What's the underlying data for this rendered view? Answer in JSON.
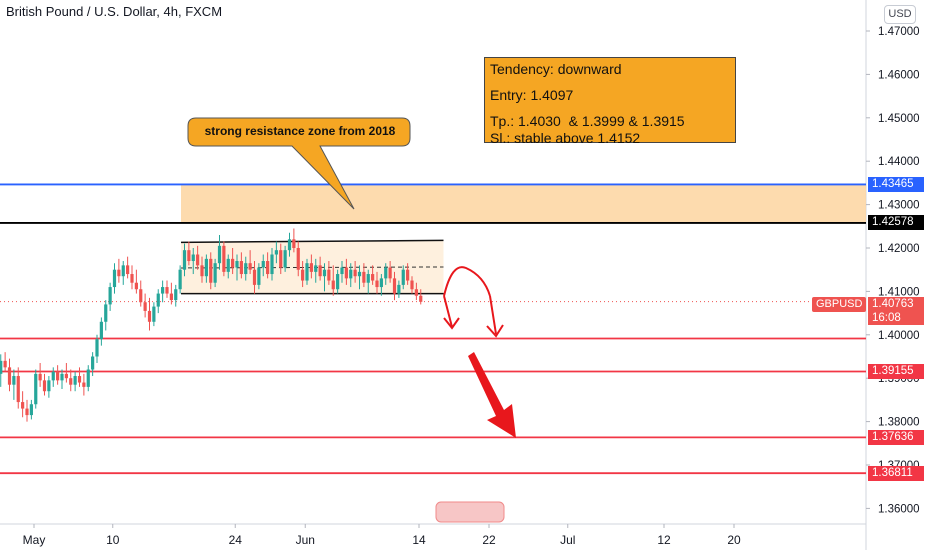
{
  "header": {
    "title": "British Pound / U.S. Dollar, 4h, FXCM",
    "unit_button": "USD"
  },
  "info_box": {
    "tendency": "Tendency: downward",
    "entry": "Entry: 1.4097",
    "tp": "Tp.: 1.4030  & 1.3999 & 1.3915",
    "sl": "Sl.: stable above 1.4152"
  },
  "callout": {
    "text": "strong resistance zone from 2018"
  },
  "price_tag": {
    "symbol": "GBPUSD",
    "price": "1.40763",
    "countdown": "16:08"
  },
  "chart_data": {
    "type": "candlestick",
    "symbol": "GBPUSD",
    "interval": "4h",
    "y_axis": {
      "ylim": [
        1.3555,
        1.4775
      ],
      "ticks": [
        1.47,
        1.46,
        1.45,
        1.44,
        1.43,
        1.42,
        1.41,
        1.4,
        1.39,
        1.38,
        1.37,
        1.36
      ],
      "tick_labels": [
        "1.47000",
        "1.46000",
        "1.45000",
        "1.44000",
        "1.43000",
        "1.42000",
        "1.41000",
        "1.40000",
        "1.39000",
        "1.38000",
        "1.37000",
        "1.36000"
      ]
    },
    "x_axis": {
      "ticks": [
        {
          "label": "May",
          "day": 1
        },
        {
          "label": "10",
          "day": 10
        },
        {
          "label": "24",
          "day": 24
        },
        {
          "label": "Jun",
          "day": 32
        },
        {
          "label": "14",
          "day": 45
        },
        {
          "label": "22",
          "day": 53
        },
        {
          "label": "Jul",
          "day": 62
        },
        {
          "label": "12",
          "day": 73
        },
        {
          "label": "20",
          "day": 81
        }
      ]
    },
    "horizontal_levels": [
      {
        "value": 1.43465,
        "label": "1.43465",
        "color": "#2962ff"
      },
      {
        "value": 1.42578,
        "label": "1.42578",
        "color": "#000000"
      },
      {
        "value": 1.39915,
        "label": "",
        "color": "#f23645"
      },
      {
        "value": 1.39155,
        "label": "1.39155",
        "color": "#f23645"
      },
      {
        "value": 1.37636,
        "label": "1.37636",
        "color": "#f23645"
      },
      {
        "value": 1.36811,
        "label": "1.36811",
        "color": "#f23645"
      }
    ],
    "resistance_zone": {
      "from": 1.42578,
      "to": 1.43465,
      "start_day": 17.8,
      "color": "#fdd5a0"
    },
    "channel": {
      "start_day": 17.8,
      "end_day": 47.8,
      "top": 1.4213,
      "bottom": 1.4095,
      "mid": 1.4154
    },
    "current_price": 1.40763,
    "candles": [
      {
        "d": -3.8,
        "o": 1.3945,
        "h": 1.397,
        "l": 1.3905,
        "c": 1.393
      },
      {
        "d": -3.3,
        "o": 1.393,
        "h": 1.395,
        "l": 1.389,
        "c": 1.391
      },
      {
        "d": -2.8,
        "o": 1.391,
        "h": 1.3955,
        "l": 1.388,
        "c": 1.394
      },
      {
        "d": -2.3,
        "o": 1.394,
        "h": 1.396,
        "l": 1.3915,
        "c": 1.3925
      },
      {
        "d": -1.8,
        "o": 1.3925,
        "h": 1.3945,
        "l": 1.387,
        "c": 1.3885
      },
      {
        "d": -1.3,
        "o": 1.3885,
        "h": 1.392,
        "l": 1.385,
        "c": 1.3905
      },
      {
        "d": -0.8,
        "o": 1.3905,
        "h": 1.3925,
        "l": 1.383,
        "c": 1.3845
      },
      {
        "d": -0.3,
        "o": 1.3845,
        "h": 1.387,
        "l": 1.381,
        "c": 1.383
      },
      {
        "d": 0.2,
        "o": 1.383,
        "h": 1.385,
        "l": 1.38,
        "c": 1.3815
      },
      {
        "d": 0.7,
        "o": 1.3815,
        "h": 1.385,
        "l": 1.3805,
        "c": 1.384
      },
      {
        "d": 1.2,
        "o": 1.384,
        "h": 1.392,
        "l": 1.383,
        "c": 1.391
      },
      {
        "d": 1.7,
        "o": 1.391,
        "h": 1.3935,
        "l": 1.388,
        "c": 1.3895
      },
      {
        "d": 2.2,
        "o": 1.3895,
        "h": 1.391,
        "l": 1.386,
        "c": 1.387
      },
      {
        "d": 2.7,
        "o": 1.387,
        "h": 1.3905,
        "l": 1.3855,
        "c": 1.3895
      },
      {
        "d": 3.2,
        "o": 1.3895,
        "h": 1.3925,
        "l": 1.388,
        "c": 1.3915
      },
      {
        "d": 3.7,
        "o": 1.3915,
        "h": 1.393,
        "l": 1.3885,
        "c": 1.3895
      },
      {
        "d": 4.2,
        "o": 1.3895,
        "h": 1.392,
        "l": 1.3875,
        "c": 1.391
      },
      {
        "d": 4.7,
        "o": 1.391,
        "h": 1.3935,
        "l": 1.389,
        "c": 1.39
      },
      {
        "d": 5.2,
        "o": 1.39,
        "h": 1.392,
        "l": 1.387,
        "c": 1.3885
      },
      {
        "d": 5.7,
        "o": 1.3885,
        "h": 1.3915,
        "l": 1.387,
        "c": 1.3905
      },
      {
        "d": 6.2,
        "o": 1.3905,
        "h": 1.3925,
        "l": 1.388,
        "c": 1.389
      },
      {
        "d": 6.7,
        "o": 1.389,
        "h": 1.391,
        "l": 1.386,
        "c": 1.388
      },
      {
        "d": 7.2,
        "o": 1.388,
        "h": 1.393,
        "l": 1.387,
        "c": 1.392
      },
      {
        "d": 7.7,
        "o": 1.392,
        "h": 1.396,
        "l": 1.3905,
        "c": 1.395
      },
      {
        "d": 8.2,
        "o": 1.395,
        "h": 1.4,
        "l": 1.3935,
        "c": 1.399
      },
      {
        "d": 8.7,
        "o": 1.399,
        "h": 1.404,
        "l": 1.3975,
        "c": 1.403
      },
      {
        "d": 9.2,
        "o": 1.403,
        "h": 1.408,
        "l": 1.401,
        "c": 1.407
      },
      {
        "d": 9.7,
        "o": 1.407,
        "h": 1.412,
        "l": 1.4055,
        "c": 1.411
      },
      {
        "d": 10.2,
        "o": 1.411,
        "h": 1.4165,
        "l": 1.4095,
        "c": 1.415
      },
      {
        "d": 10.7,
        "o": 1.415,
        "h": 1.4175,
        "l": 1.412,
        "c": 1.4135
      },
      {
        "d": 11.2,
        "o": 1.4135,
        "h": 1.417,
        "l": 1.4115,
        "c": 1.416
      },
      {
        "d": 11.7,
        "o": 1.416,
        "h": 1.418,
        "l": 1.413,
        "c": 1.414
      },
      {
        "d": 12.2,
        "o": 1.414,
        "h": 1.416,
        "l": 1.4105,
        "c": 1.412
      },
      {
        "d": 12.7,
        "o": 1.412,
        "h": 1.415,
        "l": 1.4095,
        "c": 1.4105
      },
      {
        "d": 13.2,
        "o": 1.4105,
        "h": 1.4125,
        "l": 1.4065,
        "c": 1.4075
      },
      {
        "d": 13.7,
        "o": 1.4075,
        "h": 1.4095,
        "l": 1.404,
        "c": 1.4055
      },
      {
        "d": 14.2,
        "o": 1.4055,
        "h": 1.4085,
        "l": 1.401,
        "c": 1.403
      },
      {
        "d": 14.7,
        "o": 1.403,
        "h": 1.4075,
        "l": 1.402,
        "c": 1.4065
      },
      {
        "d": 15.2,
        "o": 1.4065,
        "h": 1.4105,
        "l": 1.405,
        "c": 1.4095
      },
      {
        "d": 15.7,
        "o": 1.4095,
        "h": 1.4125,
        "l": 1.4075,
        "c": 1.411
      },
      {
        "d": 16.2,
        "o": 1.411,
        "h": 1.4125,
        "l": 1.4085,
        "c": 1.4095
      },
      {
        "d": 16.7,
        "o": 1.4095,
        "h": 1.412,
        "l": 1.407,
        "c": 1.408
      },
      {
        "d": 17.2,
        "o": 1.408,
        "h": 1.4115,
        "l": 1.4065,
        "c": 1.4105
      },
      {
        "d": 17.7,
        "o": 1.4105,
        "h": 1.416,
        "l": 1.4095,
        "c": 1.415
      },
      {
        "d": 18.2,
        "o": 1.415,
        "h": 1.421,
        "l": 1.4135,
        "c": 1.4195
      },
      {
        "d": 18.7,
        "o": 1.4195,
        "h": 1.4215,
        "l": 1.416,
        "c": 1.417
      },
      {
        "d": 19.2,
        "o": 1.417,
        "h": 1.42,
        "l": 1.414,
        "c": 1.4185
      },
      {
        "d": 19.7,
        "o": 1.4185,
        "h": 1.4205,
        "l": 1.415,
        "c": 1.416
      },
      {
        "d": 20.2,
        "o": 1.416,
        "h": 1.418,
        "l": 1.412,
        "c": 1.4135
      },
      {
        "d": 20.7,
        "o": 1.4135,
        "h": 1.4185,
        "l": 1.412,
        "c": 1.4175
      },
      {
        "d": 21.2,
        "o": 1.4175,
        "h": 1.419,
        "l": 1.4105,
        "c": 1.412
      },
      {
        "d": 21.7,
        "o": 1.412,
        "h": 1.4175,
        "l": 1.411,
        "c": 1.4165
      },
      {
        "d": 22.2,
        "o": 1.4165,
        "h": 1.423,
        "l": 1.415,
        "c": 1.4205
      },
      {
        "d": 22.7,
        "o": 1.4205,
        "h": 1.4215,
        "l": 1.4135,
        "c": 1.4145
      },
      {
        "d": 23.2,
        "o": 1.4145,
        "h": 1.4185,
        "l": 1.413,
        "c": 1.4175
      },
      {
        "d": 23.7,
        "o": 1.4175,
        "h": 1.42,
        "l": 1.414,
        "c": 1.4155
      },
      {
        "d": 24.2,
        "o": 1.4155,
        "h": 1.4185,
        "l": 1.4125,
        "c": 1.417
      },
      {
        "d": 24.7,
        "o": 1.417,
        "h": 1.419,
        "l": 1.413,
        "c": 1.414
      },
      {
        "d": 25.2,
        "o": 1.414,
        "h": 1.418,
        "l": 1.4125,
        "c": 1.4165
      },
      {
        "d": 25.7,
        "o": 1.4165,
        "h": 1.4195,
        "l": 1.414,
        "c": 1.415
      },
      {
        "d": 26.2,
        "o": 1.415,
        "h": 1.417,
        "l": 1.4095,
        "c": 1.4115
      },
      {
        "d": 26.7,
        "o": 1.4115,
        "h": 1.4165,
        "l": 1.4105,
        "c": 1.4155
      },
      {
        "d": 27.2,
        "o": 1.4155,
        "h": 1.4185,
        "l": 1.4135,
        "c": 1.417
      },
      {
        "d": 27.7,
        "o": 1.417,
        "h": 1.419,
        "l": 1.413,
        "c": 1.414
      },
      {
        "d": 28.2,
        "o": 1.414,
        "h": 1.42,
        "l": 1.4125,
        "c": 1.4185
      },
      {
        "d": 28.7,
        "o": 1.4185,
        "h": 1.4215,
        "l": 1.4165,
        "c": 1.4195
      },
      {
        "d": 29.2,
        "o": 1.4195,
        "h": 1.421,
        "l": 1.414,
        "c": 1.4155
      },
      {
        "d": 29.7,
        "o": 1.4155,
        "h": 1.4205,
        "l": 1.4145,
        "c": 1.4195
      },
      {
        "d": 30.2,
        "o": 1.4195,
        "h": 1.4235,
        "l": 1.418,
        "c": 1.422
      },
      {
        "d": 30.7,
        "o": 1.422,
        "h": 1.4245,
        "l": 1.419,
        "c": 1.42
      },
      {
        "d": 31.2,
        "o": 1.42,
        "h": 1.4215,
        "l": 1.4135,
        "c": 1.415
      },
      {
        "d": 31.7,
        "o": 1.415,
        "h": 1.417,
        "l": 1.411,
        "c": 1.4125
      },
      {
        "d": 32.2,
        "o": 1.4125,
        "h": 1.4175,
        "l": 1.4115,
        "c": 1.4165
      },
      {
        "d": 32.7,
        "o": 1.4165,
        "h": 1.4185,
        "l": 1.413,
        "c": 1.4145
      },
      {
        "d": 33.2,
        "o": 1.4145,
        "h": 1.4175,
        "l": 1.412,
        "c": 1.416
      },
      {
        "d": 33.7,
        "o": 1.416,
        "h": 1.418,
        "l": 1.4125,
        "c": 1.4135
      },
      {
        "d": 34.2,
        "o": 1.4135,
        "h": 1.4165,
        "l": 1.41,
        "c": 1.415
      },
      {
        "d": 34.7,
        "o": 1.415,
        "h": 1.417,
        "l": 1.4115,
        "c": 1.4125
      },
      {
        "d": 35.2,
        "o": 1.4125,
        "h": 1.416,
        "l": 1.409,
        "c": 1.4105
      },
      {
        "d": 35.7,
        "o": 1.4105,
        "h": 1.415,
        "l": 1.4095,
        "c": 1.414
      },
      {
        "d": 36.2,
        "o": 1.414,
        "h": 1.417,
        "l": 1.412,
        "c": 1.4155
      },
      {
        "d": 36.7,
        "o": 1.4155,
        "h": 1.4175,
        "l": 1.4115,
        "c": 1.413
      },
      {
        "d": 37.2,
        "o": 1.413,
        "h": 1.4165,
        "l": 1.411,
        "c": 1.415
      },
      {
        "d": 37.7,
        "o": 1.415,
        "h": 1.417,
        "l": 1.412,
        "c": 1.4135
      },
      {
        "d": 38.2,
        "o": 1.4135,
        "h": 1.416,
        "l": 1.4105,
        "c": 1.4145
      },
      {
        "d": 38.7,
        "o": 1.4145,
        "h": 1.4165,
        "l": 1.411,
        "c": 1.412
      },
      {
        "d": 39.2,
        "o": 1.412,
        "h": 1.415,
        "l": 1.4095,
        "c": 1.414
      },
      {
        "d": 39.7,
        "o": 1.414,
        "h": 1.416,
        "l": 1.4115,
        "c": 1.4125
      },
      {
        "d": 40.2,
        "o": 1.4125,
        "h": 1.4145,
        "l": 1.4095,
        "c": 1.411
      },
      {
        "d": 40.7,
        "o": 1.411,
        "h": 1.414,
        "l": 1.409,
        "c": 1.413
      },
      {
        "d": 41.2,
        "o": 1.413,
        "h": 1.4165,
        "l": 1.4115,
        "c": 1.4155
      },
      {
        "d": 41.7,
        "o": 1.4155,
        "h": 1.417,
        "l": 1.412,
        "c": 1.413
      },
      {
        "d": 42.2,
        "o": 1.413,
        "h": 1.4145,
        "l": 1.408,
        "c": 1.4095
      },
      {
        "d": 42.7,
        "o": 1.4095,
        "h": 1.4125,
        "l": 1.4085,
        "c": 1.4115
      },
      {
        "d": 43.2,
        "o": 1.4115,
        "h": 1.416,
        "l": 1.4105,
        "c": 1.415
      },
      {
        "d": 43.7,
        "o": 1.415,
        "h": 1.4165,
        "l": 1.4115,
        "c": 1.4125
      },
      {
        "d": 44.2,
        "o": 1.4125,
        "h": 1.4135,
        "l": 1.4095,
        "c": 1.4105
      },
      {
        "d": 44.7,
        "o": 1.4105,
        "h": 1.412,
        "l": 1.408,
        "c": 1.409
      },
      {
        "d": 45.2,
        "o": 1.409,
        "h": 1.4105,
        "l": 1.407,
        "c": 1.4076
      }
    ]
  }
}
